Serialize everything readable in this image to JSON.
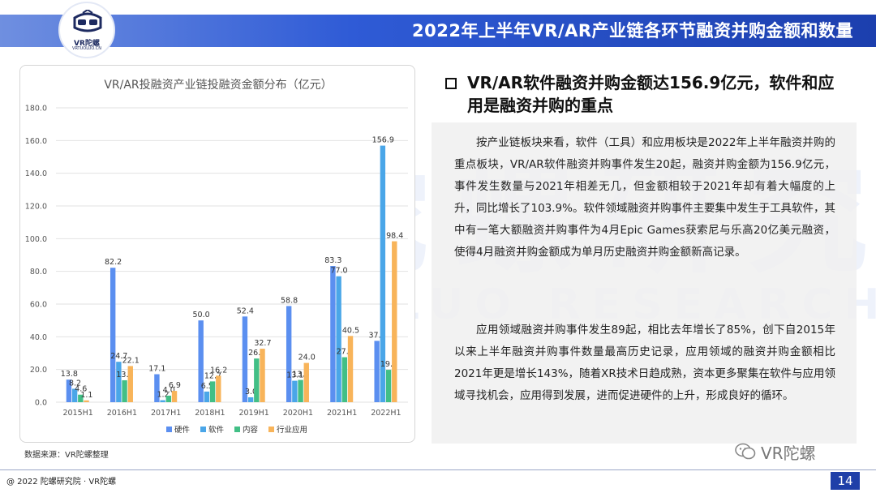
{
  "header": {
    "title": "2022年上半年VR/AR产业链各环节融资并购金额和数量",
    "logo_text": "VR陀螺",
    "logo_sub": "VRTUOLUO.CN"
  },
  "watermark": {
    "big": "TL 陀螺研究",
    "small": "TUOLUO RESEARCH"
  },
  "chart_data": {
    "type": "bar",
    "title": "VR/AR投融资产业链投融资金额分布（亿元）",
    "categories": [
      "2015H1",
      "2016H1",
      "2017H1",
      "2018H1",
      "2019H1",
      "2020H1",
      "2021H1",
      "2022H1"
    ],
    "series": [
      {
        "name": "硬件",
        "color": "#5b8ff0",
        "values": [
          13.8,
          82.2,
          17.1,
          50.0,
          52.4,
          58.8,
          83.3,
          37.5
        ]
      },
      {
        "name": "软件",
        "color": "#4aa6e8",
        "values": [
          8.2,
          24.7,
          1.2,
          6.5,
          3.0,
          13.1,
          77.0,
          156.9
        ]
      },
      {
        "name": "内容",
        "color": "#42bf86",
        "values": [
          4.6,
          13.4,
          4.0,
          12.7,
          26.7,
          13.6,
          27.5,
          19.8
        ]
      },
      {
        "name": "行业应用",
        "color": "#f8b45a",
        "values": [
          1.1,
          22.1,
          6.9,
          16.2,
          32.7,
          24.0,
          40.5,
          98.4
        ]
      }
    ],
    "ylim": [
      0,
      180
    ],
    "yticks": [
      "0.0",
      "20.0",
      "40.0",
      "60.0",
      "80.0",
      "100.0",
      "120.0",
      "140.0",
      "160.0",
      "180.0"
    ],
    "grid": true,
    "legend": "bottom"
  },
  "source": "数据来源：VR陀螺整理",
  "section": {
    "title": "VR/AR软件融资并购金额达156.9亿元，软件和应用是融资并购的重点"
  },
  "paragraphs": [
    "按产业链板块来看，软件（工具）和应用板块是2022年上半年融资并购的重点板块，VR/AR软件融资并购事件发生20起，融资并购金额为156.9亿元，事件发生数量与2021年相差无几，但金额相较于2021年却有着大幅度的上升，同比增长了103.9%。软件领域融资并购事件主要集中发生于工具软件，其中有一笔大额融资并购事件为4月Epic Games获索尼与乐高20亿美元融资，使得4月融资并购金额成为单月历史融资并购金额新高记录。",
    "应用领域融资并购事件发生89起，相比去年增长了85%，创下自2015年以来上半年融资并购事件数量最高历史记录，应用领域的融资并购金额相比2021年更是增长143%，随着XR技术日趋成熟，资本更多聚集在软件与应用领域寻找机会，应用得到发展，进而促进硬件的上升，形成良好的循环。"
  ],
  "footer": {
    "copyright": "@ 2022 陀螺研究院 · VR陀螺",
    "page": "14",
    "wechat_name": "VR陀螺"
  }
}
